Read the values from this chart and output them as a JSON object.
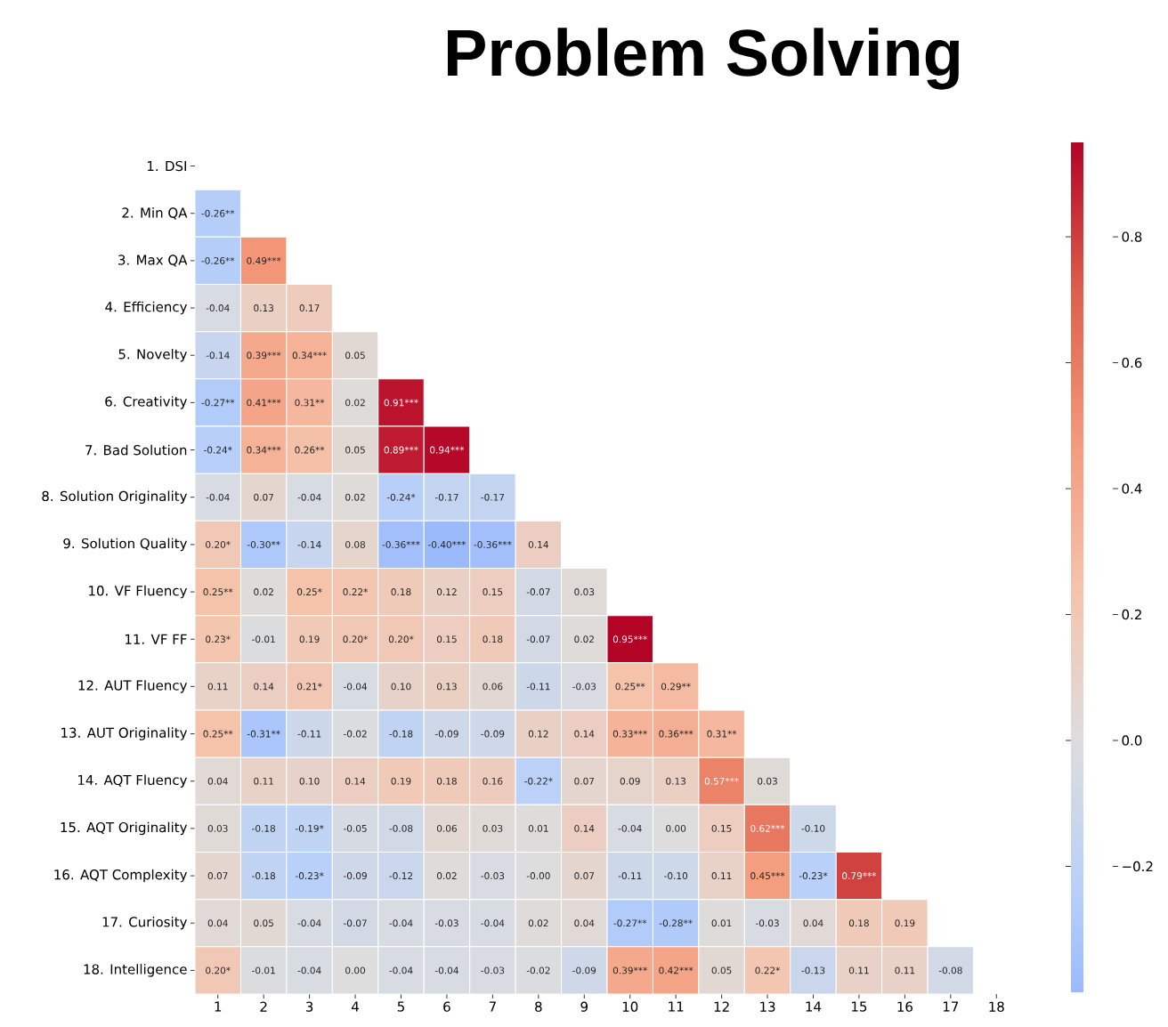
{
  "chart_data": {
    "type": "heatmap",
    "title": "Problem Solving",
    "categories": [
      "1",
      "2",
      "3",
      "4",
      "5",
      "6",
      "7",
      "8",
      "9",
      "10",
      "11",
      "12",
      "13",
      "14",
      "15",
      "16",
      "17",
      "18"
    ],
    "y_categories": [
      "1. DSI",
      "2. Min QA",
      "3. Max QA",
      "4. Efficiency",
      "5. Novelty",
      "6. Creativity",
      "7. Bad Solution",
      "8. Solution Originality",
      "9. Solution Quality",
      "10. VF Fluency",
      "11. VF FF",
      "12. AUT Fluency",
      "13. AUT Originality",
      "14. AQT Fluency",
      "15. AQT Originality",
      "16. AQT Complexity",
      "17. Curiosity",
      "18. Intelligence"
    ],
    "cells": [
      [
        null,
        null,
        null,
        null,
        null,
        null,
        null,
        null,
        null,
        null,
        null,
        null,
        null,
        null,
        null,
        null,
        null,
        null
      ],
      [
        -0.26,
        null,
        null,
        null,
        null,
        null,
        null,
        null,
        null,
        null,
        null,
        null,
        null,
        null,
        null,
        null,
        null,
        null
      ],
      [
        -0.26,
        0.49,
        null,
        null,
        null,
        null,
        null,
        null,
        null,
        null,
        null,
        null,
        null,
        null,
        null,
        null,
        null,
        null
      ],
      [
        -0.04,
        0.13,
        0.17,
        null,
        null,
        null,
        null,
        null,
        null,
        null,
        null,
        null,
        null,
        null,
        null,
        null,
        null,
        null
      ],
      [
        -0.14,
        0.39,
        0.34,
        0.05,
        null,
        null,
        null,
        null,
        null,
        null,
        null,
        null,
        null,
        null,
        null,
        null,
        null,
        null
      ],
      [
        -0.27,
        0.41,
        0.31,
        0.02,
        0.91,
        null,
        null,
        null,
        null,
        null,
        null,
        null,
        null,
        null,
        null,
        null,
        null,
        null
      ],
      [
        -0.24,
        0.34,
        0.26,
        0.05,
        0.89,
        0.94,
        null,
        null,
        null,
        null,
        null,
        null,
        null,
        null,
        null,
        null,
        null,
        null
      ],
      [
        -0.04,
        0.07,
        -0.04,
        0.02,
        -0.24,
        -0.17,
        -0.17,
        null,
        null,
        null,
        null,
        null,
        null,
        null,
        null,
        null,
        null,
        null
      ],
      [
        0.2,
        -0.3,
        -0.14,
        0.08,
        -0.36,
        -0.4,
        -0.36,
        0.14,
        null,
        null,
        null,
        null,
        null,
        null,
        null,
        null,
        null,
        null
      ],
      [
        0.25,
        0.02,
        0.25,
        0.22,
        0.18,
        0.12,
        0.15,
        -0.07,
        0.03,
        null,
        null,
        null,
        null,
        null,
        null,
        null,
        null,
        null
      ],
      [
        0.23,
        -0.01,
        0.19,
        0.2,
        0.2,
        0.15,
        0.18,
        -0.07,
        0.02,
        0.95,
        null,
        null,
        null,
        null,
        null,
        null,
        null,
        null
      ],
      [
        0.11,
        0.14,
        0.21,
        -0.04,
        0.1,
        0.13,
        0.06,
        -0.11,
        -0.03,
        0.25,
        0.29,
        null,
        null,
        null,
        null,
        null,
        null,
        null
      ],
      [
        0.25,
        -0.31,
        -0.11,
        -0.02,
        -0.18,
        -0.09,
        -0.09,
        0.12,
        0.14,
        0.33,
        0.36,
        0.31,
        null,
        null,
        null,
        null,
        null,
        null
      ],
      [
        0.04,
        0.11,
        0.1,
        0.14,
        0.19,
        0.18,
        0.16,
        -0.22,
        0.07,
        0.09,
        0.13,
        0.57,
        0.03,
        null,
        null,
        null,
        null,
        null
      ],
      [
        0.03,
        -0.18,
        -0.19,
        -0.05,
        -0.08,
        0.06,
        0.03,
        0.01,
        0.14,
        -0.04,
        0.0,
        0.15,
        0.62,
        -0.1,
        null,
        null,
        null,
        null
      ],
      [
        0.07,
        -0.18,
        -0.23,
        -0.09,
        -0.12,
        0.02,
        -0.03,
        -0.0,
        0.07,
        -0.11,
        -0.1,
        0.11,
        0.45,
        -0.23,
        0.79,
        null,
        null,
        null
      ],
      [
        0.04,
        0.05,
        -0.04,
        -0.07,
        -0.04,
        -0.03,
        -0.04,
        0.02,
        0.04,
        -0.27,
        -0.28,
        0.01,
        -0.03,
        0.04,
        0.18,
        0.19,
        null,
        null
      ],
      [
        0.2,
        -0.01,
        -0.04,
        0.0,
        -0.04,
        -0.04,
        -0.03,
        -0.02,
        -0.09,
        0.39,
        0.42,
        0.05,
        0.22,
        -0.13,
        0.11,
        0.11,
        -0.08,
        null
      ]
    ],
    "cell_labels": [
      [
        null,
        null,
        null,
        null,
        null,
        null,
        null,
        null,
        null,
        null,
        null,
        null,
        null,
        null,
        null,
        null,
        null,
        null
      ],
      [
        "-0.26**",
        null,
        null,
        null,
        null,
        null,
        null,
        null,
        null,
        null,
        null,
        null,
        null,
        null,
        null,
        null,
        null,
        null
      ],
      [
        "-0.26**",
        "0.49***",
        null,
        null,
        null,
        null,
        null,
        null,
        null,
        null,
        null,
        null,
        null,
        null,
        null,
        null,
        null,
        null
      ],
      [
        "-0.04",
        "0.13",
        "0.17",
        null,
        null,
        null,
        null,
        null,
        null,
        null,
        null,
        null,
        null,
        null,
        null,
        null,
        null,
        null
      ],
      [
        "-0.14",
        "0.39***",
        "0.34***",
        "0.05",
        null,
        null,
        null,
        null,
        null,
        null,
        null,
        null,
        null,
        null,
        null,
        null,
        null,
        null
      ],
      [
        "-0.27**",
        "0.41***",
        "0.31**",
        "0.02",
        "0.91***",
        null,
        null,
        null,
        null,
        null,
        null,
        null,
        null,
        null,
        null,
        null,
        null,
        null
      ],
      [
        "-0.24*",
        "0.34***",
        "0.26**",
        "0.05",
        "0.89***",
        "0.94***",
        null,
        null,
        null,
        null,
        null,
        null,
        null,
        null,
        null,
        null,
        null,
        null
      ],
      [
        "-0.04",
        "0.07",
        "-0.04",
        "0.02",
        "-0.24*",
        "-0.17",
        "-0.17",
        null,
        null,
        null,
        null,
        null,
        null,
        null,
        null,
        null,
        null,
        null
      ],
      [
        "0.20*",
        "-0.30**",
        "-0.14",
        "0.08",
        "-0.36***",
        "-0.40***",
        "-0.36***",
        "0.14",
        null,
        null,
        null,
        null,
        null,
        null,
        null,
        null,
        null,
        null
      ],
      [
        "0.25**",
        "0.02",
        "0.25*",
        "0.22*",
        "0.18",
        "0.12",
        "0.15",
        "-0.07",
        "0.03",
        null,
        null,
        null,
        null,
        null,
        null,
        null,
        null,
        null
      ],
      [
        "0.23*",
        "-0.01",
        "0.19",
        "0.20*",
        "0.20*",
        "0.15",
        "0.18",
        "-0.07",
        "0.02",
        "0.95***",
        null,
        null,
        null,
        null,
        null,
        null,
        null,
        null
      ],
      [
        "0.11",
        "0.14",
        "0.21*",
        "-0.04",
        "0.10",
        "0.13",
        "0.06",
        "-0.11",
        "-0.03",
        "0.25**",
        "0.29**",
        null,
        null,
        null,
        null,
        null,
        null,
        null
      ],
      [
        "0.25**",
        "-0.31**",
        "-0.11",
        "-0.02",
        "-0.18",
        "-0.09",
        "-0.09",
        "0.12",
        "0.14",
        "0.33***",
        "0.36***",
        "0.31**",
        null,
        null,
        null,
        null,
        null,
        null
      ],
      [
        "0.04",
        "0.11",
        "0.10",
        "0.14",
        "0.19",
        "0.18",
        "0.16",
        "-0.22*",
        "0.07",
        "0.09",
        "0.13",
        "0.57***",
        "0.03",
        null,
        null,
        null,
        null,
        null
      ],
      [
        "0.03",
        "-0.18",
        "-0.19*",
        "-0.05",
        "-0.08",
        "0.06",
        "0.03",
        "0.01",
        "0.14",
        "-0.04",
        "0.00",
        "0.15",
        "0.62***",
        "-0.10",
        null,
        null,
        null,
        null
      ],
      [
        "0.07",
        "-0.18",
        "-0.23*",
        "-0.09",
        "-0.12",
        "0.02",
        "-0.03",
        "-0.00",
        "0.07",
        "-0.11",
        "-0.10",
        "0.11",
        "0.45***",
        "-0.23*",
        "0.79***",
        null,
        null,
        null
      ],
      [
        "0.04",
        "0.05",
        "-0.04",
        "-0.07",
        "-0.04",
        "-0.03",
        "-0.04",
        "0.02",
        "0.04",
        "-0.27**",
        "-0.28**",
        "0.01",
        "-0.03",
        "0.04",
        "0.18",
        "0.19",
        null,
        null
      ],
      [
        "0.20*",
        "-0.01",
        "-0.04",
        "0.00",
        "-0.04",
        "-0.04",
        "-0.03",
        "-0.02",
        "-0.09",
        "0.39***",
        "0.42***",
        "0.05",
        "0.22*",
        "-0.13",
        "0.11",
        "0.11",
        "-0.08",
        null
      ]
    ],
    "clim": [
      -0.4,
      0.95
    ],
    "cticks": [
      {
        "value": -0.2,
        "label": "−0.2"
      },
      {
        "value": 0,
        "label": "0.0"
      },
      0.2,
      0.4,
      0.6,
      0.8
    ]
  }
}
